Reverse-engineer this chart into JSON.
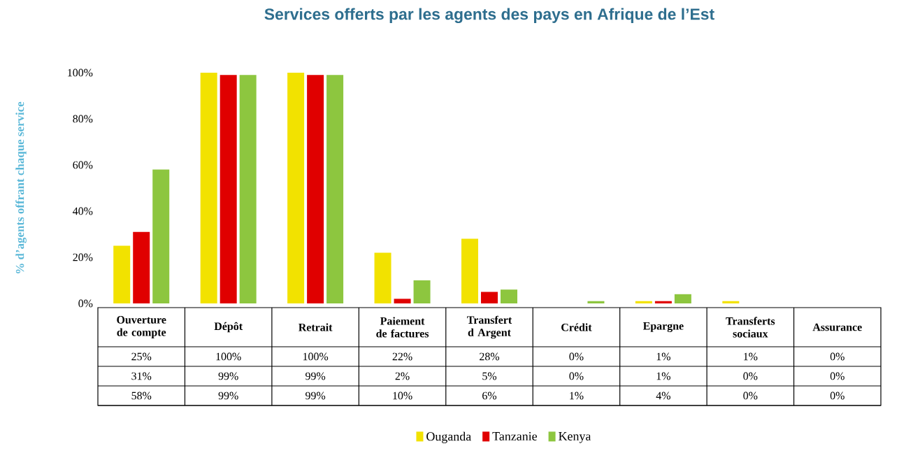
{
  "chart_data": {
    "type": "bar",
    "title": "Services offerts par les agents des pays en Afrique de l’Est",
    "ylabel": "% d’agents offrant chaque service",
    "categories": [
      "Ouverture de compte",
      "Dépôt",
      "Retrait",
      "Paiement de factures",
      "Transfert d Argent",
      "Crédit",
      "Epargne",
      "Transferts sociaux",
      "Assurance"
    ],
    "series": [
      {
        "name": "Ouganda",
        "color": "#f2e200",
        "values": [
          25,
          100,
          100,
          22,
          28,
          0,
          1,
          1,
          0
        ],
        "value_labels": [
          "25%",
          "100%",
          "100%",
          "22%",
          "28%",
          "0%",
          "1%",
          "1%",
          "0%"
        ]
      },
      {
        "name": "Tanzanie",
        "color": "#e00000",
        "values": [
          31,
          99,
          99,
          2,
          5,
          0,
          1,
          0,
          0
        ],
        "value_labels": [
          "31%",
          "99%",
          "99%",
          "2%",
          "5%",
          "0%",
          "1%",
          "0%",
          "0%"
        ]
      },
      {
        "name": "Kenya",
        "color": "#8dc63f",
        "values": [
          58,
          99,
          99,
          10,
          6,
          1,
          4,
          0,
          0
        ],
        "value_labels": [
          "58%",
          "99%",
          "99%",
          "10%",
          "6%",
          "1%",
          "4%",
          "0%",
          "0%"
        ]
      }
    ],
    "ylim": [
      0,
      100
    ],
    "yticks": [
      {
        "value": 0,
        "label": "0%"
      },
      {
        "value": 20,
        "label": "20%"
      },
      {
        "value": 40,
        "label": "40%"
      },
      {
        "value": 60,
        "label": "60%"
      },
      {
        "value": 80,
        "label": "80%"
      },
      {
        "value": 100,
        "label": "100%"
      }
    ],
    "tick_labels": "y",
    "legend": "bottom"
  }
}
